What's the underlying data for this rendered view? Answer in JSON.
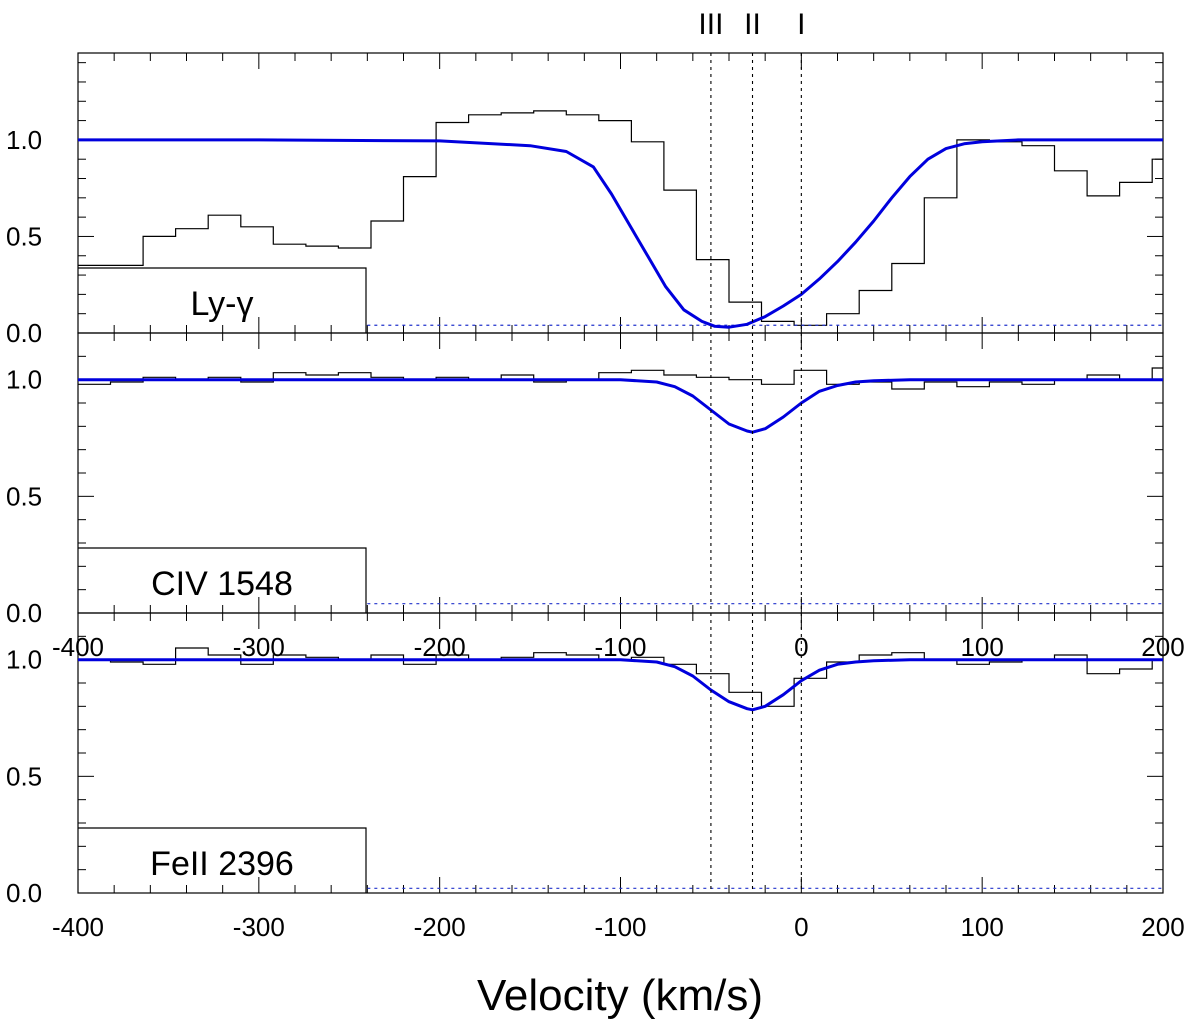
{
  "chart_data": {
    "type": "line",
    "xlabel": "Velocity (km/s)",
    "xlim": [
      -400,
      200
    ],
    "x_ticks": [
      "-400",
      "-300",
      "-200",
      "-100",
      "0",
      "100",
      "200"
    ],
    "y_ticks": [
      "0.0",
      "0.5",
      "1.0"
    ],
    "components": [
      {
        "label": "III",
        "velocity": -50
      },
      {
        "label": "II",
        "velocity": -27
      },
      {
        "label": "I",
        "velocity": 0
      }
    ],
    "panels": [
      {
        "label": "Ly-γ",
        "ylim": [
          0,
          1.45
        ],
        "data_x": [
          -400,
          -364,
          -346,
          -328,
          -310,
          -292,
          -274,
          -256,
          -238,
          -220,
          -202,
          -184,
          -166,
          -148,
          -130,
          -112,
          -94,
          -76,
          -58,
          -40,
          -22,
          -4,
          14,
          32,
          50,
          68,
          86,
          104,
          122,
          140,
          158,
          176,
          194
        ],
        "data_y": [
          0.35,
          0.5,
          0.54,
          0.61,
          0.55,
          0.46,
          0.45,
          0.44,
          0.58,
          0.81,
          1.09,
          1.13,
          1.14,
          1.15,
          1.13,
          1.1,
          0.99,
          0.74,
          0.38,
          0.16,
          0.06,
          0.04,
          0.1,
          0.22,
          0.36,
          0.7,
          1.0,
          0.99,
          0.97,
          0.84,
          0.71,
          0.78,
          0.9
        ],
        "model_x": [
          -400,
          -300,
          -200,
          -150,
          -130,
          -115,
          -105,
          -95,
          -85,
          -75,
          -65,
          -55,
          -48,
          -40,
          -30,
          -20,
          -10,
          0,
          10,
          20,
          30,
          40,
          50,
          60,
          70,
          80,
          90,
          100,
          120,
          150,
          200
        ],
        "model_y": [
          1.0,
          1.0,
          0.995,
          0.97,
          0.94,
          0.86,
          0.72,
          0.56,
          0.4,
          0.24,
          0.12,
          0.06,
          0.035,
          0.03,
          0.045,
          0.085,
          0.14,
          0.2,
          0.28,
          0.37,
          0.47,
          0.58,
          0.7,
          0.81,
          0.9,
          0.955,
          0.98,
          0.99,
          1.0,
          1.0,
          1.0
        ],
        "error_y": 0.04
      },
      {
        "label": "CIV 1548",
        "ylim": [
          0,
          1.2
        ],
        "data_x": [
          -400,
          -382,
          -364,
          -346,
          -328,
          -310,
          -292,
          -274,
          -256,
          -238,
          -220,
          -202,
          -184,
          -166,
          -148,
          -130,
          -112,
          -94,
          -76,
          -58,
          -40,
          -22,
          -4,
          14,
          32,
          50,
          68,
          86,
          104,
          122,
          140,
          158,
          176,
          194
        ],
        "data_y": [
          0.98,
          0.99,
          1.01,
          1.0,
          1.01,
          0.99,
          1.03,
          1.02,
          1.03,
          1.01,
          1.0,
          1.01,
          1.0,
          1.02,
          0.99,
          1.0,
          1.03,
          1.04,
          1.02,
          1.01,
          1.0,
          0.98,
          1.04,
          0.98,
          0.99,
          0.96,
          0.99,
          0.97,
          0.99,
          0.98,
          1.0,
          1.02,
          1.0,
          1.05
        ],
        "model_x": [
          -400,
          -200,
          -100,
          -80,
          -70,
          -60,
          -50,
          -40,
          -30,
          -27,
          -20,
          -10,
          0,
          10,
          20,
          30,
          40,
          60,
          100,
          200
        ],
        "model_y": [
          1.0,
          1.0,
          1.0,
          0.99,
          0.97,
          0.93,
          0.87,
          0.81,
          0.78,
          0.775,
          0.79,
          0.84,
          0.9,
          0.95,
          0.975,
          0.99,
          0.995,
          1.0,
          1.0,
          1.0
        ],
        "error_y": 0.04
      },
      {
        "label": "FeII 2396",
        "ylim": [
          0,
          1.2
        ],
        "data_x": [
          -400,
          -382,
          -364,
          -346,
          -328,
          -310,
          -292,
          -274,
          -256,
          -238,
          -220,
          -202,
          -184,
          -166,
          -148,
          -130,
          -112,
          -94,
          -76,
          -58,
          -40,
          -22,
          -4,
          14,
          32,
          50,
          68,
          86,
          104,
          122,
          140,
          158,
          176,
          194
        ],
        "data_y": [
          1.0,
          0.99,
          0.98,
          1.05,
          1.02,
          0.98,
          1.02,
          1.01,
          1.0,
          1.02,
          0.98,
          1.02,
          1.0,
          1.01,
          1.03,
          1.02,
          1.0,
          1.01,
          0.98,
          0.94,
          0.86,
          0.8,
          0.92,
          0.99,
          1.02,
          1.03,
          1.0,
          0.98,
          0.99,
          1.0,
          1.02,
          0.94,
          0.96,
          1.0
        ],
        "model_x": [
          -400,
          -200,
          -100,
          -80,
          -70,
          -60,
          -50,
          -40,
          -30,
          -27,
          -20,
          -10,
          0,
          10,
          20,
          30,
          40,
          60,
          100,
          200
        ],
        "model_y": [
          1.0,
          1.0,
          1.0,
          0.99,
          0.97,
          0.93,
          0.87,
          0.82,
          0.79,
          0.785,
          0.8,
          0.85,
          0.91,
          0.955,
          0.98,
          0.99,
          0.995,
          1.0,
          1.0,
          1.0
        ],
        "error_y": 0.02
      }
    ]
  },
  "colors": {
    "model": "#0000dd",
    "error": "#2233cc",
    "data": "#000000",
    "component_lines": "#000000"
  }
}
